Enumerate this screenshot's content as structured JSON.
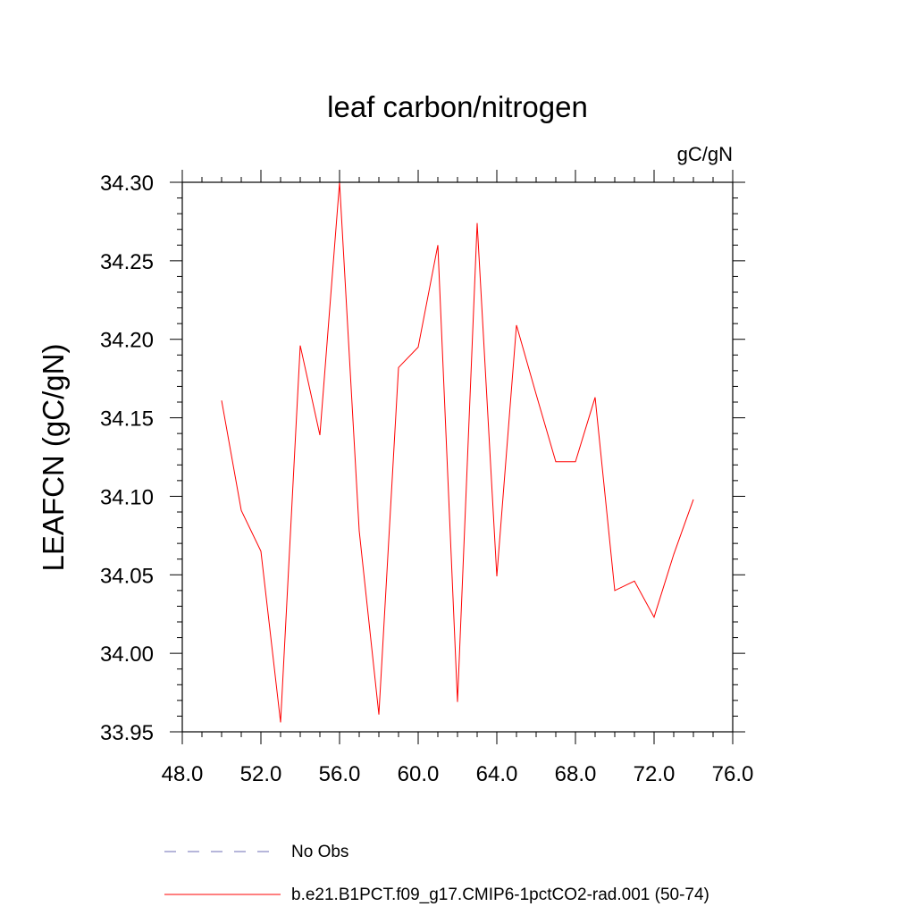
{
  "chart_data": {
    "type": "line",
    "title": "leaf carbon/nitrogen",
    "units_label": "gC/gN",
    "ylabel": "LEAFCN  (gC/gN)",
    "xlabel": "",
    "xlim": [
      48.0,
      76.0
    ],
    "ylim": [
      33.95,
      34.3
    ],
    "x_ticks": [
      48,
      52,
      56,
      60,
      64,
      68,
      72,
      76
    ],
    "x_tick_labels": [
      "48.0",
      "52.0",
      "56.0",
      "60.0",
      "64.0",
      "68.0",
      "72.0",
      "76.0"
    ],
    "y_ticks": [
      33.95,
      34.0,
      34.05,
      34.1,
      34.15,
      34.2,
      34.25,
      34.3
    ],
    "y_tick_labels": [
      "33.95",
      "34.00",
      "34.05",
      "34.10",
      "34.15",
      "34.20",
      "34.25",
      "34.30"
    ],
    "grid": false,
    "series": [
      {
        "name": "b.e21.B1PCT.f09_g17.CMIP6-1pctCO2-rad.001 (50-74)",
        "color": "#ff0000",
        "x": [
          50,
          51,
          52,
          53,
          54,
          55,
          56,
          57,
          58,
          59,
          60,
          61,
          62,
          63,
          64,
          65,
          66,
          67,
          68,
          69,
          70,
          71,
          72,
          73,
          74
        ],
        "y": [
          34.161,
          34.091,
          34.065,
          33.956,
          34.196,
          34.139,
          34.3,
          34.078,
          33.961,
          34.182,
          34.195,
          34.26,
          33.969,
          34.274,
          34.049,
          34.209,
          34.165,
          34.122,
          34.122,
          34.163,
          34.04,
          34.046,
          34.023,
          34.063,
          34.098
        ]
      }
    ],
    "legend": [
      {
        "label": "No Obs",
        "color": "#6e6eb4",
        "style": "dashed"
      },
      {
        "label": "b.e21.B1PCT.f09_g17.CMIP6-1pctCO2-rad.001 (50-74)",
        "color": "#ff0000",
        "style": "solid"
      }
    ],
    "legend_position": "bottom"
  }
}
